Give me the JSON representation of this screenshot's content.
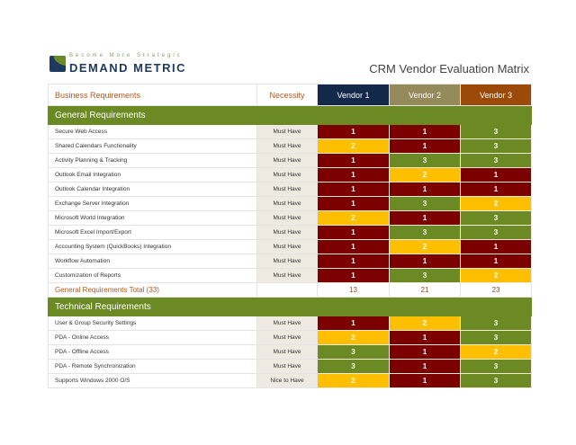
{
  "logo": {
    "tagline": "Become More Strategic",
    "brand": "DEMAND METRIC"
  },
  "title": "CRM Vendor Evaluation Matrix",
  "header": {
    "requirements": "Business Requirements",
    "necessity": "Necessity",
    "vendors": [
      "Vendor 1",
      "Vendor 2",
      "Vendor 3"
    ],
    "vendor_colors": [
      "#14294a",
      "#948a5a",
      "#9c4a0a"
    ]
  },
  "score_colors": {
    "1": "#7d0000",
    "2": "#fdbf00",
    "3": "#6b8a23"
  },
  "sections": [
    {
      "title": "General Requirements",
      "rows": [
        {
          "name": "Secure Web Access",
          "necessity": "Must Have",
          "scores": [
            1,
            1,
            3
          ]
        },
        {
          "name": "Shared Calendars Functionality",
          "necessity": "Must Have",
          "scores": [
            2,
            1,
            3
          ]
        },
        {
          "name": "Activity Planning & Tracking",
          "necessity": "Must Have",
          "scores": [
            1,
            3,
            3
          ]
        },
        {
          "name": "Outlook Email Integration",
          "necessity": "Must Have",
          "scores": [
            1,
            2,
            1
          ]
        },
        {
          "name": "Outlook Calendar Integration",
          "necessity": "Must Have",
          "scores": [
            1,
            1,
            1
          ]
        },
        {
          "name": "Exchange Server Integration",
          "necessity": "Must Have",
          "scores": [
            1,
            3,
            2
          ]
        },
        {
          "name": "Microsoft World Integration",
          "necessity": "Must Have",
          "scores": [
            2,
            1,
            3
          ]
        },
        {
          "name": "Microsoft Excel Import/Export",
          "necessity": "Must Have",
          "scores": [
            1,
            3,
            3
          ]
        },
        {
          "name": "Accounting System (QuickBooks) Integration",
          "necessity": "Must Have",
          "scores": [
            1,
            2,
            1
          ]
        },
        {
          "name": "Workflow Automation",
          "necessity": "Must Have",
          "scores": [
            1,
            1,
            1
          ]
        },
        {
          "name": "Customization of Reports",
          "necessity": "Must Have",
          "scores": [
            1,
            3,
            2
          ]
        }
      ],
      "total": {
        "label": "General Requirements Total (33)",
        "values": [
          13,
          21,
          23
        ]
      }
    },
    {
      "title": "Technical Requirements",
      "rows": [
        {
          "name": "User & Group Security Settings",
          "necessity": "Must Have",
          "scores": [
            1,
            2,
            3
          ]
        },
        {
          "name": "PDA - Online Access",
          "necessity": "Must Have",
          "scores": [
            2,
            1,
            3
          ]
        },
        {
          "name": "PDA - Offline Access",
          "necessity": "Must Have",
          "scores": [
            3,
            1,
            2
          ]
        },
        {
          "name": "PDA - Remote Synchronization",
          "necessity": "Must Have",
          "scores": [
            3,
            1,
            3
          ]
        },
        {
          "name": "Supports Windows 2000 O/S",
          "necessity": "Nice to Have",
          "scores": [
            2,
            1,
            3
          ]
        }
      ]
    }
  ]
}
